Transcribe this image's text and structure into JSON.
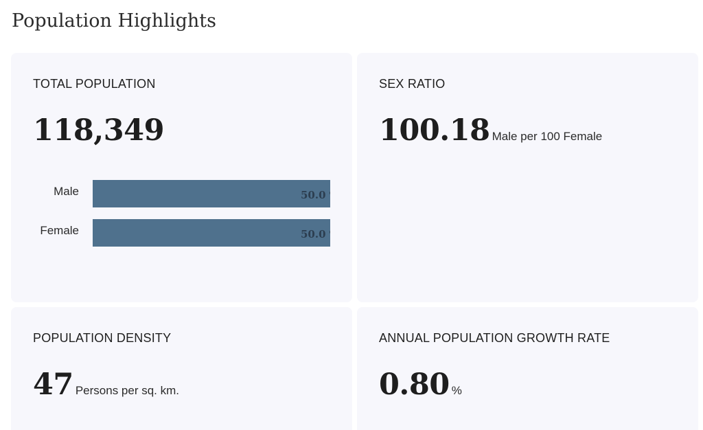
{
  "page": {
    "title": "Population Highlights"
  },
  "cards": {
    "total_population": {
      "label": "TOTAL POPULATION",
      "value": "118,349",
      "bars": [
        {
          "label": "Male",
          "percent": 50.0,
          "value_text": "50.0 %"
        },
        {
          "label": "Female",
          "percent": 50.0,
          "value_text": "50.0 %"
        }
      ]
    },
    "sex_ratio": {
      "label": "SEX RATIO",
      "value": "100.18",
      "unit": "Male per 100 Female"
    },
    "population_density": {
      "label": "POPULATION DENSITY",
      "value": "47",
      "unit": "Persons per sq. km."
    },
    "growth_rate": {
      "label": "ANNUAL POPULATION GROWTH RATE",
      "value": "0.80",
      "unit": "%"
    }
  },
  "colors": {
    "card_background": "#f7f7fc",
    "bar_fill": "#4f718d",
    "bar_value_text": "#2c3e50"
  }
}
